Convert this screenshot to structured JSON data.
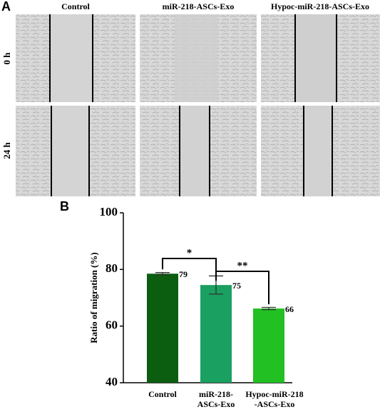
{
  "panel_a": {
    "label": "A",
    "columns": [
      "Control",
      "miR-218-ASCs-Exo",
      "Hypoc-miR-218-ASCs-Exo"
    ],
    "rows": [
      "0 h",
      "24 h"
    ]
  },
  "chart_data": {
    "type": "bar",
    "panel_label": "B",
    "y_label": "Ratio of migration (%)",
    "categories": [
      "Control",
      "miR-218-\nASCs-Exo",
      "Hypoc-miR-218\n-ASCs-Exo"
    ],
    "values": [
      78.5,
      74.5,
      66.2
    ],
    "errors": [
      0.4,
      3.2,
      0.4
    ],
    "value_labels": [
      "79",
      "75",
      "66"
    ],
    "colors": [
      "#0b5e10",
      "#1aa060",
      "#22c022"
    ],
    "ylim": [
      40,
      100
    ],
    "yticks": [
      40,
      60,
      80,
      100
    ],
    "annotations": [
      {
        "text": "*",
        "from": 0,
        "to": 1
      },
      {
        "text": "**",
        "from": 1,
        "to": 2
      }
    ]
  }
}
